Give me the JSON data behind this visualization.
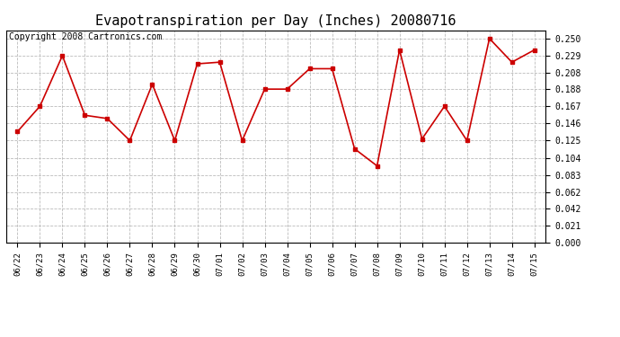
{
  "title": "Evapotranspiration per Day (Inches) 20080716",
  "copyright": "Copyright 2008 Cartronics.com",
  "dates": [
    "06/22",
    "06/23",
    "06/24",
    "06/25",
    "06/26",
    "06/27",
    "06/28",
    "06/29",
    "06/30",
    "07/01",
    "07/02",
    "07/03",
    "07/04",
    "07/05",
    "07/06",
    "07/07",
    "07/08",
    "07/09",
    "07/10",
    "07/11",
    "07/12",
    "07/13",
    "07/14",
    "07/15"
  ],
  "values": [
    0.136,
    0.167,
    0.229,
    0.156,
    0.152,
    0.125,
    0.194,
    0.125,
    0.219,
    0.221,
    0.125,
    0.188,
    0.188,
    0.213,
    0.213,
    0.115,
    0.094,
    0.236,
    0.127,
    0.167,
    0.125,
    0.25,
    0.221,
    0.236
  ],
  "line_color": "#cc0000",
  "marker": "s",
  "marker_size": 3,
  "bg_color": "#ffffff",
  "plot_bg_color": "#ffffff",
  "grid_color": "#bbbbbb",
  "yticks": [
    0.0,
    0.021,
    0.042,
    0.062,
    0.083,
    0.104,
    0.125,
    0.146,
    0.167,
    0.188,
    0.208,
    0.229,
    0.25
  ],
  "ylim": [
    0.0,
    0.26
  ],
  "title_fontsize": 11,
  "copyright_fontsize": 7
}
